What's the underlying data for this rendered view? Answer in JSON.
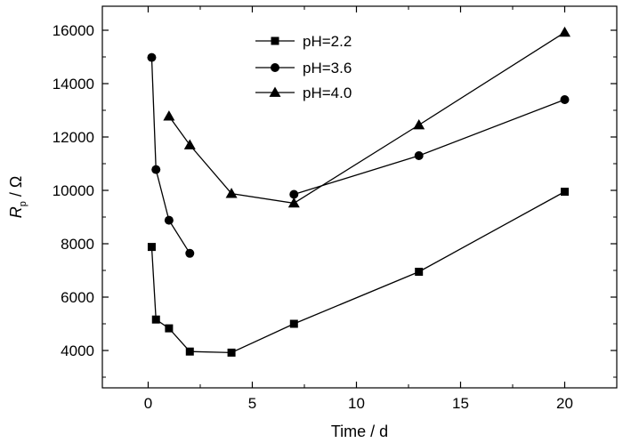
{
  "chart_data": {
    "type": "line",
    "xlabel": "Time / d",
    "ylabel": {
      "symbol": "R",
      "subscript": "p",
      "unit": " / Ω"
    },
    "xlim": [
      -2.2,
      22.5
    ],
    "ylim": [
      2600,
      16900
    ],
    "xticks": [
      0,
      5,
      10,
      15,
      20
    ],
    "yticks": [
      4000,
      6000,
      8000,
      10000,
      12000,
      14000,
      16000
    ],
    "grid": false,
    "legend_position": "top-center",
    "series": [
      {
        "name": "pH=2.2",
        "marker": "square",
        "x": [
          0.17,
          0.375,
          1,
          2,
          4,
          7,
          13,
          20
        ],
        "y": [
          7880,
          5160,
          4830,
          3960,
          3920,
          5000,
          6950,
          9950
        ]
      },
      {
        "name": "pH=3.6",
        "marker": "circle",
        "x": [
          0.17,
          0.375,
          1,
          2
        ],
        "y": [
          14980,
          10780,
          8880,
          7640
        ],
        "x2": [
          7,
          13,
          20
        ],
        "y2": [
          9850,
          11300,
          13400
        ]
      },
      {
        "name": "pH=4.0",
        "marker": "triangle",
        "x": [
          1,
          2,
          4,
          7,
          13,
          20
        ],
        "y": [
          12780,
          11700,
          9880,
          9520,
          12450,
          15920
        ]
      }
    ]
  }
}
